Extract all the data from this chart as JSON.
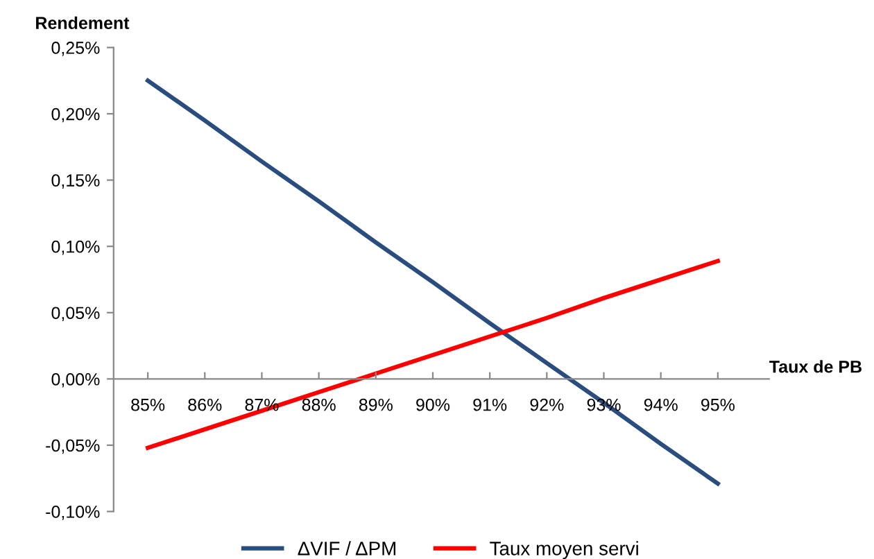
{
  "chart_data": {
    "type": "line",
    "ylabel": "Rendement",
    "xlabel": "Taux de PB",
    "categories": [
      "85%",
      "86%",
      "87%",
      "88%",
      "89%",
      "90%",
      "91%",
      "92%",
      "93%",
      "94%",
      "95%"
    ],
    "series": [
      {
        "name": "ΔVIF / ΔPM",
        "color": "#2a4d7f",
        "values": [
          0.225,
          0.195,
          0.164,
          0.134,
          0.103,
          0.073,
          0.042,
          0.012,
          -0.018,
          -0.049,
          -0.079
        ]
      },
      {
        "name": "Taux moyen servi",
        "color": "#ff0000",
        "values": [
          -0.052,
          -0.038,
          -0.024,
          -0.01,
          0.004,
          0.018,
          0.032,
          0.046,
          0.061,
          0.075,
          0.089
        ]
      }
    ],
    "ylim": [
      -0.1,
      0.25
    ],
    "yticks": [
      {
        "value": -0.1,
        "label": "-0,10%"
      },
      {
        "value": -0.05,
        "label": "-0,05%"
      },
      {
        "value": 0,
        "label": "0,00%"
      },
      {
        "value": 0.05,
        "label": "0,05%"
      },
      {
        "value": 0.1,
        "label": "0,10%"
      },
      {
        "value": 0.15,
        "label": "0,15%"
      },
      {
        "value": 0.2,
        "label": "0,20%"
      },
      {
        "value": 0.25,
        "label": "0,25%"
      }
    ],
    "grid": false,
    "legend": "bottom",
    "marker": "none",
    "line_style": "solid"
  }
}
